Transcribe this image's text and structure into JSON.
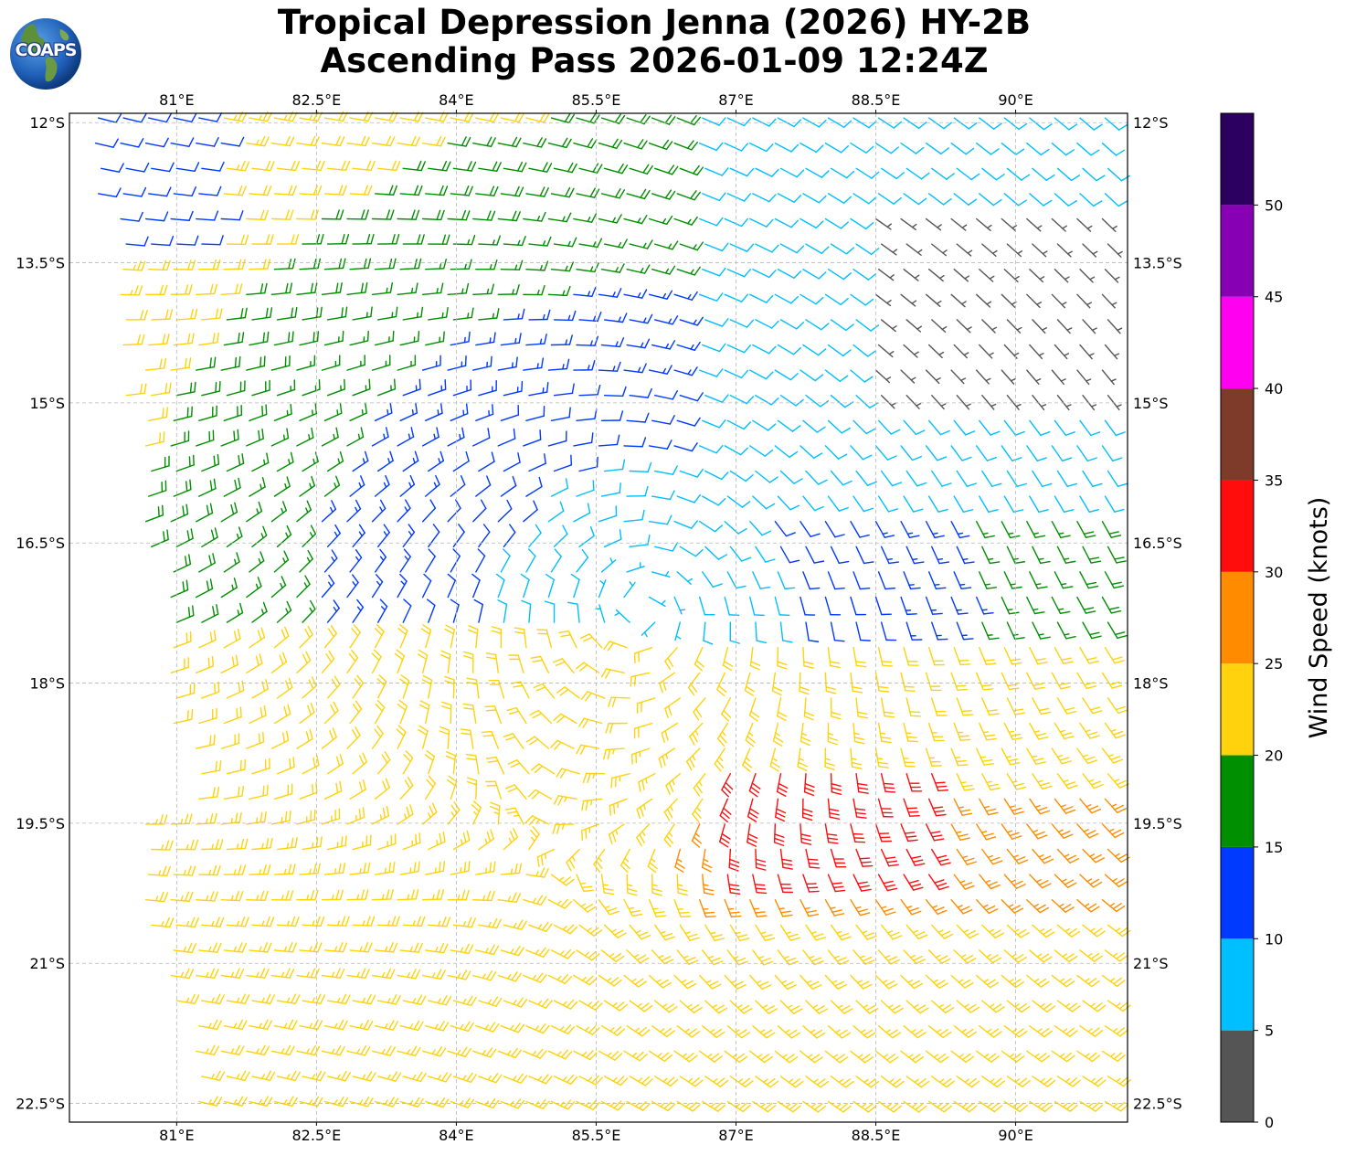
{
  "header": {
    "title_line1": "Tropical Depression Jenna (2026) HY-2B",
    "title_line2": "Ascending Pass 2026-01-09 12:24Z",
    "logo_text": "COAPS"
  },
  "map": {
    "lon_range": [
      79.85,
      91.2
    ],
    "lat_range": [
      -22.7,
      -11.9
    ],
    "lon_ticks": [
      81,
      82.5,
      84,
      85.5,
      87,
      88.5,
      90
    ],
    "lon_tick_labels": [
      "81°E",
      "82.5°E",
      "84°E",
      "85.5°E",
      "87°E",
      "88.5°E",
      "90°E"
    ],
    "lat_ticks": [
      -12,
      -13.5,
      -15,
      -16.5,
      -18,
      -19.5,
      -21,
      -22.5
    ],
    "lat_tick_labels": [
      "12°S",
      "13.5°S",
      "15°S",
      "16.5°S",
      "18°S",
      "19.5°S",
      "21°S",
      "22.5°S"
    ],
    "gridlines": true,
    "storm_center": {
      "lon": 86.0,
      "lat": -17.2
    },
    "calm_zone": {
      "lon": [
        88.4,
        91.2
      ],
      "lat": [
        -15.0,
        -12.8
      ]
    },
    "strong_band": {
      "lon": [
        86.8,
        89.2
      ],
      "lat": [
        -20.2,
        -18.8
      ]
    },
    "data_gap_label": ""
  },
  "colorbar": {
    "title": "Wind Speed (knots)",
    "ticks": [
      0,
      5,
      10,
      15,
      20,
      25,
      30,
      35,
      40,
      45,
      50
    ],
    "tick_labels": [
      "0",
      "5",
      "10",
      "15",
      "20",
      "25",
      "30",
      "35",
      "40",
      "45",
      "50"
    ],
    "bins": [
      {
        "from": 0,
        "to": 5,
        "color": "#555555"
      },
      {
        "from": 5,
        "to": 10,
        "color": "#00bfff"
      },
      {
        "from": 10,
        "to": 15,
        "color": "#0039ff"
      },
      {
        "from": 15,
        "to": 20,
        "color": "#008f00"
      },
      {
        "from": 20,
        "to": 25,
        "color": "#ffd20d"
      },
      {
        "from": 25,
        "to": 30,
        "color": "#ff8c00"
      },
      {
        "from": 30,
        "to": 35,
        "color": "#ff0d0d"
      },
      {
        "from": 35,
        "to": 40,
        "color": "#7f3b29"
      },
      {
        "from": 40,
        "to": 45,
        "color": "#ff00f0"
      },
      {
        "from": 45,
        "to": 50,
        "color": "#8700b4"
      },
      {
        "from": 50,
        "to": 55,
        "color": "#2c005f"
      }
    ]
  },
  "colors": {
    "text": "#000000",
    "grid": "#b8b8b8",
    "ocean_background": "#ffffff"
  }
}
